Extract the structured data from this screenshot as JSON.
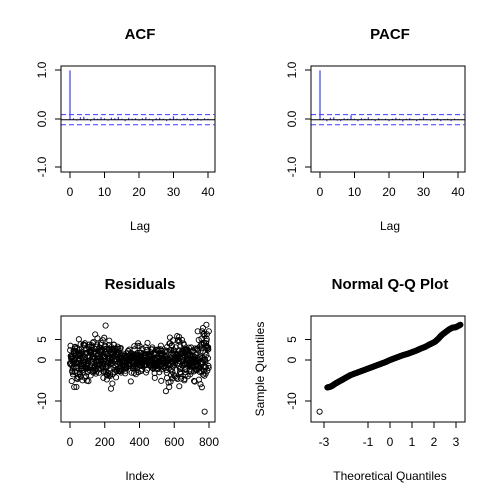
{
  "chart_data": [
    {
      "type": "bar",
      "title": "ACF",
      "xlabel": "Lag",
      "ylabel": "",
      "xlim": [
        0,
        40
      ],
      "ylim": [
        -1.0,
        1.0
      ],
      "xticks": [
        "0",
        "10",
        "20",
        "30",
        "40"
      ],
      "yticks": [
        "-1.0",
        "0.0",
        "1.0"
      ],
      "confidence_band": [
        -0.07,
        0.07
      ],
      "x": [
        0,
        1,
        2,
        3,
        4,
        5,
        6,
        7,
        8,
        9,
        10,
        11,
        12,
        13,
        14,
        15,
        16,
        17,
        18,
        19,
        20,
        21,
        22,
        23,
        24,
        25,
        26,
        27,
        28,
        29,
        30,
        31,
        32,
        33,
        34,
        35,
        36,
        37,
        38,
        39,
        40
      ],
      "values": [
        1.0,
        0.03,
        -0.02,
        0.05,
        0.06,
        0.02,
        -0.03,
        0.04,
        0.02,
        0.05,
        0.03,
        -0.02,
        0.04,
        0.03,
        0.06,
        0.02,
        -0.03,
        0.04,
        0.02,
        0.03,
        -0.02,
        0.03,
        0.05,
        0.02,
        -0.04,
        0.03,
        0.04,
        0.02,
        -0.03,
        0.03,
        0.07,
        0.02,
        -0.02,
        0.03,
        0.04,
        -0.03,
        0.02,
        0.03,
        -0.02,
        0.03,
        0.02
      ],
      "color": "#3b3bff"
    },
    {
      "type": "bar",
      "title": "PACF",
      "xlabel": "Lag",
      "ylabel": "",
      "xlim": [
        0,
        40
      ],
      "ylim": [
        -1.0,
        1.0
      ],
      "xticks": [
        "0",
        "10",
        "20",
        "30",
        "40"
      ],
      "yticks": [
        "-1.0",
        "0.0",
        "1.0"
      ],
      "confidence_band": [
        -0.07,
        0.07
      ],
      "x": [
        0,
        1,
        2,
        3,
        4,
        5,
        6,
        7,
        8,
        9,
        10,
        11,
        12,
        13,
        14,
        15,
        16,
        17,
        18,
        19,
        20,
        21,
        22,
        23,
        24,
        25,
        26,
        27,
        28,
        29,
        30,
        31,
        32,
        33,
        34,
        35,
        36,
        37,
        38,
        39,
        40
      ],
      "values": [
        1.0,
        0.03,
        -0.03,
        0.04,
        0.05,
        -0.02,
        -0.03,
        0.03,
        0.02,
        0.09,
        0.02,
        -0.03,
        0.03,
        0.02,
        0.05,
        0.01,
        -0.03,
        0.03,
        0.01,
        0.02,
        -0.03,
        0.02,
        0.04,
        0.02,
        -0.04,
        0.02,
        0.03,
        0.01,
        -0.03,
        0.02,
        0.05,
        0.01,
        -0.02,
        0.02,
        0.03,
        -0.03,
        0.01,
        0.02,
        -0.03,
        0.02,
        0.01
      ],
      "color": "#3b3bff"
    },
    {
      "type": "scatter",
      "title": "Residuals",
      "xlabel": "Index",
      "ylabel": "",
      "xlim": [
        0,
        800
      ],
      "ylim": [
        -12,
        8
      ],
      "xticks": [
        "0",
        "200",
        "400",
        "600",
        "800"
      ],
      "yticks": [
        "-10",
        "0",
        "5"
      ],
      "n_points": 800,
      "sd": 2.5,
      "outliers": [
        [
          205,
          8.4
        ],
        [
          775,
          -12.6
        ],
        [
          785,
          8.6
        ],
        [
          765,
          7.8
        ],
        [
          236,
          -7.0
        ],
        [
          552,
          -7.6
        ],
        [
          24,
          -6.6
        ]
      ]
    },
    {
      "type": "scatter",
      "title": "Normal Q-Q Plot",
      "xlabel": "Theoretical Quantiles",
      "ylabel": "Sample Quantiles",
      "xlim": [
        -3.3,
        3.3
      ],
      "ylim": [
        -12,
        8
      ],
      "xticks": [
        "-3",
        "-1",
        "0",
        "1",
        "2",
        "3"
      ],
      "yticks": [
        "-10",
        "0",
        "5"
      ],
      "points": [
        [
          -3.2,
          -12.6
        ],
        [
          -2.85,
          -6.7
        ],
        [
          -2.7,
          -6.5
        ],
        [
          -2.6,
          -6.2
        ],
        [
          -2.5,
          -5.8
        ],
        [
          -2.4,
          -5.5
        ],
        [
          -2.3,
          -5.2
        ],
        [
          -2.2,
          -4.9
        ],
        [
          -2.1,
          -4.6
        ],
        [
          -2.0,
          -4.3
        ],
        [
          -1.9,
          -4.0
        ],
        [
          -1.8,
          -3.7
        ],
        [
          -1.6,
          -3.3
        ],
        [
          -1.4,
          -2.9
        ],
        [
          -1.2,
          -2.5
        ],
        [
          -1.0,
          -2.1
        ],
        [
          -0.8,
          -1.7
        ],
        [
          -0.6,
          -1.3
        ],
        [
          -0.4,
          -0.9
        ],
        [
          -0.2,
          -0.5
        ],
        [
          0.0,
          0.0
        ],
        [
          0.2,
          0.4
        ],
        [
          0.4,
          0.8
        ],
        [
          0.6,
          1.2
        ],
        [
          0.8,
          1.5
        ],
        [
          1.0,
          1.9
        ],
        [
          1.2,
          2.3
        ],
        [
          1.4,
          2.8
        ],
        [
          1.6,
          3.2
        ],
        [
          1.8,
          3.8
        ],
        [
          2.0,
          4.3
        ],
        [
          2.1,
          4.7
        ],
        [
          2.2,
          5.2
        ],
        [
          2.3,
          5.8
        ],
        [
          2.4,
          6.3
        ],
        [
          2.55,
          6.9
        ],
        [
          2.7,
          7.5
        ],
        [
          2.85,
          7.9
        ],
        [
          3.0,
          8.0
        ],
        [
          3.2,
          8.6
        ]
      ]
    }
  ]
}
